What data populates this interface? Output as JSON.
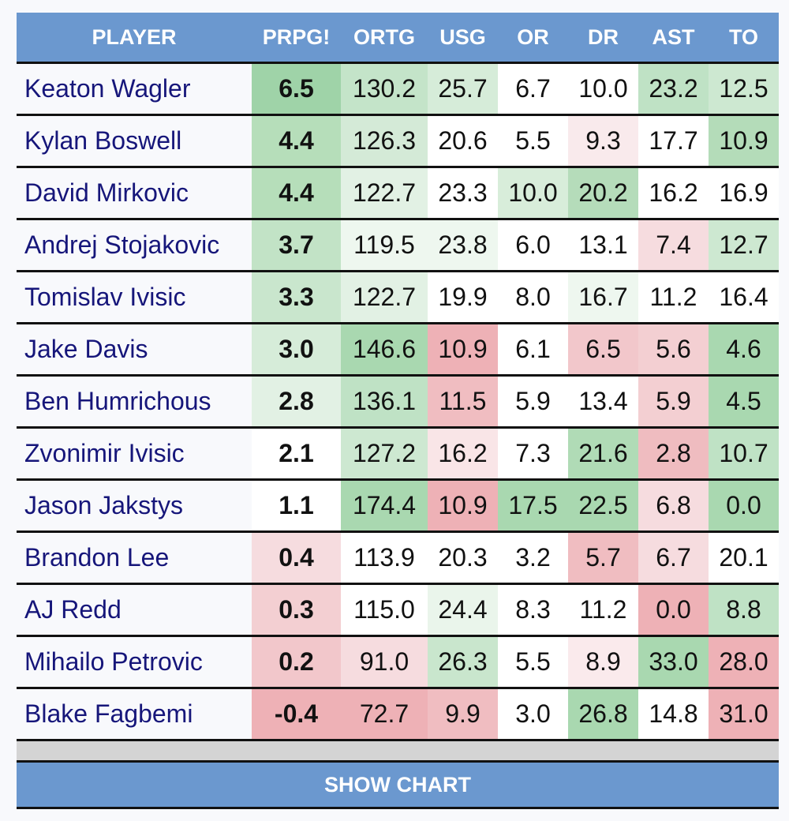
{
  "headers": [
    "PLAYER",
    "PRPG!",
    "ORTG",
    "USG",
    "OR",
    "DR",
    "AST",
    "TO"
  ],
  "rows": [
    {
      "name": "Keaton Wagler",
      "prpg": "6.5",
      "ortg": "130.2",
      "usg": "25.7",
      "or": "6.7",
      "dr": "10.0",
      "ast": "23.2",
      "to": "12.5",
      "colors": {
        "prpg": "#9fd3a8",
        "ortg": "#c4e4c9",
        "usg": "#d6ecd9",
        "or": "#ffffff",
        "dr": "#ffffff",
        "ast": "#bfe2c5",
        "to": "#cde8d1"
      }
    },
    {
      "name": "Kylan Boswell",
      "prpg": "4.4",
      "ortg": "126.3",
      "usg": "20.6",
      "or": "5.5",
      "dr": "9.3",
      "ast": "17.7",
      "to": "10.9",
      "colors": {
        "prpg": "#b6deba",
        "ortg": "#d4ead7",
        "usg": "#ffffff",
        "or": "#ffffff",
        "dr": "#f9eaec",
        "ast": "#ffffff",
        "to": "#b4dcb9"
      }
    },
    {
      "name": "David Mirkovic",
      "prpg": "4.4",
      "ortg": "122.7",
      "usg": "23.3",
      "or": "10.0",
      "dr": "20.2",
      "ast": "16.2",
      "to": "16.9",
      "colors": {
        "prpg": "#b6deba",
        "ortg": "#e2f1e4",
        "usg": "#ffffff",
        "or": "#d8edda",
        "dr": "#b5dcba",
        "ast": "#ffffff",
        "to": "#ffffff"
      }
    },
    {
      "name": "Andrej Stojakovic",
      "prpg": "3.7",
      "ortg": "119.5",
      "usg": "23.8",
      "or": "6.0",
      "dr": "13.1",
      "ast": "7.4",
      "to": "12.7",
      "colors": {
        "prpg": "#c2e3c6",
        "ortg": "#eef7ef",
        "usg": "#eef7ef",
        "or": "#ffffff",
        "dr": "#ffffff",
        "ast": "#f6dcdf",
        "to": "#cde8d1"
      }
    },
    {
      "name": "Tomislav Ivisic",
      "prpg": "3.3",
      "ortg": "122.7",
      "usg": "19.9",
      "or": "8.0",
      "dr": "16.7",
      "ast": "11.2",
      "to": "16.4",
      "colors": {
        "prpg": "#c9e6cd",
        "ortg": "#e2f1e4",
        "usg": "#ffffff",
        "or": "#ffffff",
        "dr": "#eef7ef",
        "ast": "#ffffff",
        "to": "#ffffff"
      }
    },
    {
      "name": "Jake Davis",
      "prpg": "3.0",
      "ortg": "146.6",
      "usg": "10.9",
      "or": "6.1",
      "dr": "6.5",
      "ast": "5.6",
      "to": "4.6",
      "colors": {
        "prpg": "#d6ecd9",
        "ortg": "#a9d8b0",
        "usg": "#eeb1b6",
        "or": "#ffffff",
        "dr": "#f2c7cb",
        "ast": "#f3cfd2",
        "to": "#a9d8b0"
      }
    },
    {
      "name": "Ben Humrichous",
      "prpg": "2.8",
      "ortg": "136.1",
      "usg": "11.5",
      "or": "5.9",
      "dr": "13.4",
      "ast": "5.9",
      "to": "4.5",
      "colors": {
        "prpg": "#e2f1e4",
        "ortg": "#bfe2c5",
        "usg": "#f0bdc1",
        "or": "#ffffff",
        "dr": "#ffffff",
        "ast": "#f3cfd2",
        "to": "#a9d8b0"
      }
    },
    {
      "name": "Zvonimir Ivisic",
      "prpg": "2.1",
      "ortg": "127.2",
      "usg": "16.2",
      "or": "7.3",
      "dr": "21.6",
      "ast": "2.8",
      "to": "10.7",
      "colors": {
        "prpg": "#ffffff",
        "ortg": "#cde8d1",
        "usg": "#f9e5e7",
        "or": "#ffffff",
        "dr": "#b0dbb6",
        "ast": "#efbcc0",
        "to": "#bfe2c5"
      }
    },
    {
      "name": "Jason Jakstys",
      "prpg": "1.1",
      "ortg": "174.4",
      "usg": "10.9",
      "or": "17.5",
      "dr": "22.5",
      "ast": "6.8",
      "to": "0.0",
      "colors": {
        "prpg": "#ffffff",
        "ortg": "#a9d8b0",
        "usg": "#eeb1b6",
        "or": "#a9d8b0",
        "dr": "#a9d8b0",
        "ast": "#f6dcdf",
        "to": "#a9d8b0"
      }
    },
    {
      "name": "Brandon Lee",
      "prpg": "0.4",
      "ortg": "113.9",
      "usg": "20.3",
      "or": "3.2",
      "dr": "5.7",
      "ast": "6.7",
      "to": "20.1",
      "colors": {
        "prpg": "#f6dcdf",
        "ortg": "#ffffff",
        "usg": "#ffffff",
        "or": "#ffffff",
        "dr": "#f0bdc1",
        "ast": "#f6dcdf",
        "to": "#ffffff"
      }
    },
    {
      "name": "AJ Redd",
      "prpg": "0.3",
      "ortg": "115.0",
      "usg": "24.4",
      "or": "8.3",
      "dr": "11.2",
      "ast": "0.0",
      "to": "8.8",
      "colors": {
        "prpg": "#f3cfd2",
        "ortg": "#ffffff",
        "usg": "#eaf5eb",
        "or": "#ffffff",
        "dr": "#ffffff",
        "ast": "#eeb1b6",
        "to": "#bfe2c5"
      }
    },
    {
      "name": "Mihailo Petrovic",
      "prpg": "0.2",
      "ortg": "91.0",
      "usg": "26.3",
      "or": "5.5",
      "dr": "8.9",
      "ast": "33.0",
      "to": "28.0",
      "colors": {
        "prpg": "#f2c7cb",
        "ortg": "#f6dcdf",
        "usg": "#c9e6cd",
        "or": "#ffffff",
        "dr": "#faeaec",
        "ast": "#a9d8b0",
        "to": "#eeb1b6"
      }
    },
    {
      "name": "Blake Fagbemi",
      "prpg": "-0.4",
      "ortg": "72.7",
      "usg": "9.9",
      "or": "3.0",
      "dr": "26.8",
      "ast": "14.8",
      "to": "31.0",
      "colors": {
        "prpg": "#eeb1b6",
        "ortg": "#eeb1b6",
        "usg": "#f0bdc1",
        "or": "#ffffff",
        "dr": "#a9d8b0",
        "ast": "#ffffff",
        "to": "#eeb1b6"
      }
    }
  ],
  "footer": {
    "show_chart_label": "SHOW CHART"
  }
}
